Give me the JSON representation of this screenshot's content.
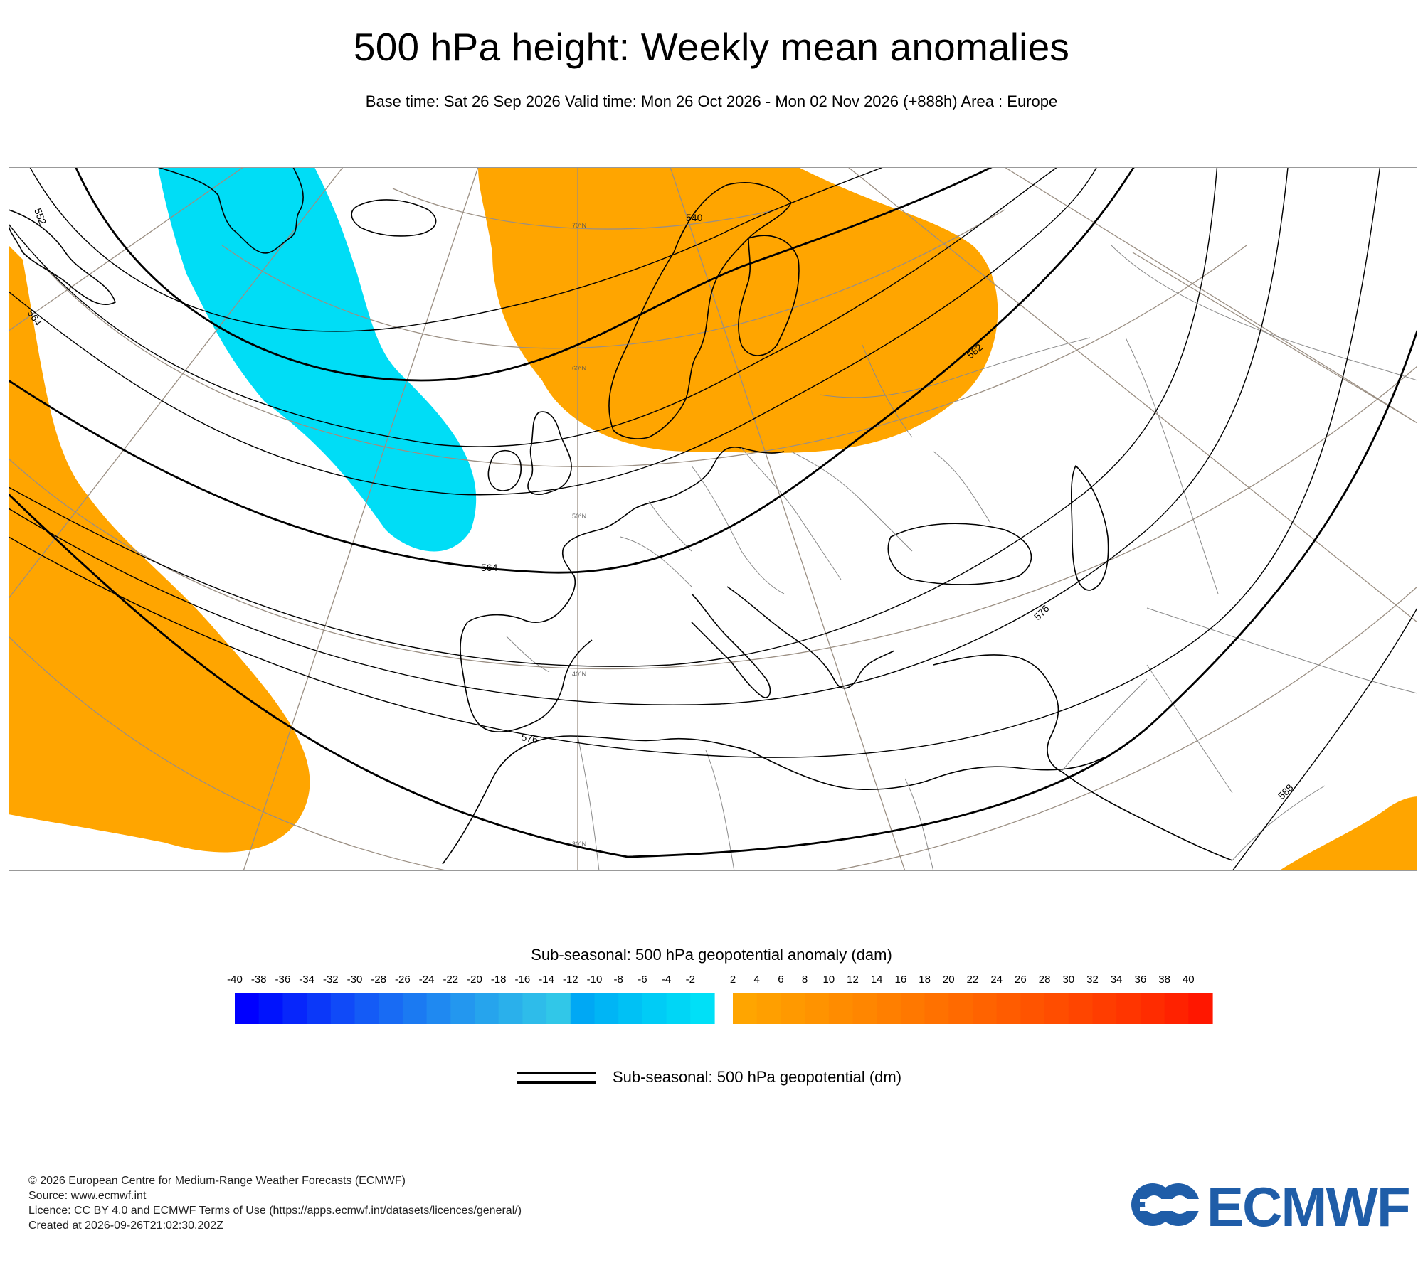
{
  "header": {
    "title": "500 hPa height: Weekly mean anomalies",
    "subtitle": "Base time: Sat 26 Sep 2026 Valid time: Mon 26 Oct 2026 - Mon 02 Nov 2026 (+888h) Area : Europe"
  },
  "map": {
    "area": "Europe",
    "contour_labels": [
      "552",
      "564",
      "540",
      "564",
      "576",
      "582",
      "576",
      "588"
    ],
    "latitude_labels": [
      "70°N",
      "60°N",
      "50°N",
      "40°N",
      "30°N"
    ],
    "colors": {
      "positive_anomaly": "#ffa500",
      "negative_anomaly": "#00ddf6",
      "coastline": "#000000",
      "graticule": "#9b8f83",
      "borders": "#8a8a8a",
      "contour": "#000000"
    }
  },
  "chart_data": {
    "type": "heatmap",
    "variable": "Sub-seasonal: 500 hPa geopotential anomaly (dam)",
    "contour_variable": "Sub-seasonal: 500 hPa geopotential (dm)",
    "contour_levels": [
      540,
      552,
      564,
      576,
      582,
      588
    ],
    "anomaly_regions": [
      {
        "sign": "positive",
        "location": "Scandinavia and northern Russia",
        "anomaly_dam": 2
      },
      {
        "sign": "negative",
        "location": "Greenland to west of Ireland",
        "anomaly_dam": -2
      },
      {
        "sign": "positive",
        "location": "central and eastern North Atlantic",
        "anomaly_dam": 2
      },
      {
        "sign": "positive",
        "location": "southeast corner (Arabia)",
        "anomaly_dam": 2
      }
    ],
    "colorbar": {
      "title": "Sub-seasonal: 500 hPa geopotential anomaly (dam)",
      "negative_ticks": [
        "-40",
        "-38",
        "-36",
        "-34",
        "-32",
        "-30",
        "-28",
        "-26",
        "-24",
        "-22",
        "-20",
        "-18",
        "-16",
        "-14",
        "-12",
        "-10",
        "-8",
        "-6",
        "-4",
        "-2"
      ],
      "positive_ticks": [
        "2",
        "4",
        "6",
        "8",
        "10",
        "12",
        "14",
        "16",
        "18",
        "20",
        "22",
        "24",
        "26",
        "28",
        "30",
        "32",
        "34",
        "36",
        "38",
        "40"
      ],
      "negative_colors": [
        "#0000ff",
        "#0013fd",
        "#0726fb",
        "#0b38f9",
        "#104af8",
        "#145bf6",
        "#186bf4",
        "#1b7af2",
        "#1f89f1",
        "#2397ef",
        "#26a4ed",
        "#2ab0eb",
        "#2ebcea",
        "#31c7e8",
        "#00a8f4",
        "#00b5f5",
        "#00c1f5",
        "#00ccf6",
        "#00d6f6",
        "#00e0f7"
      ],
      "positive_colors": [
        "#ffa500",
        "#ff9f00",
        "#ff9900",
        "#ff9300",
        "#ff8c00",
        "#ff8600",
        "#ff7f00",
        "#ff7800",
        "#ff7100",
        "#ff6a00",
        "#ff6300",
        "#ff5c00",
        "#ff5400",
        "#ff4d00",
        "#ff4500",
        "#ff3d00",
        "#ff3500",
        "#ff2c00",
        "#ff2200",
        "#ff1700"
      ],
      "range": [
        -40,
        40
      ]
    }
  },
  "colorbar_title": "Sub-seasonal: 500 hPa geopotential anomaly (dam)",
  "contour_legend": "Sub-seasonal: 500 hPa geopotential (dm)",
  "footer": {
    "copyright": "© 2026 European Centre for Medium-Range Weather Forecasts (ECMWF)",
    "source": "Source: www.ecmwf.int",
    "licence": "Licence: CC BY 4.0 and ECMWF Terms of Use (https://apps.ecmwf.int/datasets/licences/general/)",
    "created": "Created at 2026-09-26T21:02:30.202Z"
  },
  "logo": {
    "text": "ECMWF",
    "color": "#1f5da8"
  }
}
